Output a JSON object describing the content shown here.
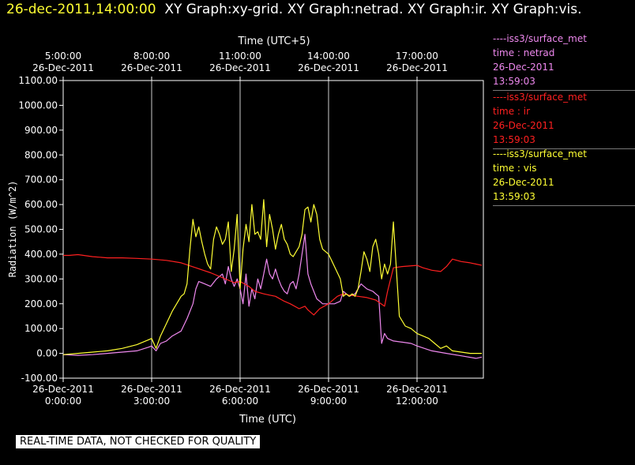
{
  "header": {
    "timestamp": "26-dec-2011,14:00:00",
    "graphs": "XY Graph:xy-grid.  XY Graph:netrad.  XY Graph:ir.  XY Graph:vis."
  },
  "notice": "REAL-TIME DATA, NOT CHECKED FOR QUALITY",
  "legend": [
    {
      "source": "----iss3/surface_met",
      "label": "time : netrad",
      "date": "26-Dec-2011",
      "time": "13:59:03",
      "color": "#ee88ee"
    },
    {
      "source": "----iss3/surface_met",
      "label": "time : ir",
      "date": "26-Dec-2011",
      "time": "13:59:03",
      "color": "#ff2020"
    },
    {
      "source": "----iss3/surface_met",
      "label": "time : vis",
      "date": "26-Dec-2011",
      "time": "13:59:03",
      "color": "#ffff33"
    }
  ],
  "chart_data": {
    "type": "line",
    "xlabel": "Time (UTC)",
    "xlabel_top": "Time (UTC+5)",
    "ylabel": "Radiation (W/m^2)",
    "xlim": [
      0,
      14.25
    ],
    "ylim": [
      -100,
      1100
    ],
    "yticks": [
      "-100.00",
      "0.00",
      "100.00",
      "200.00",
      "300.00",
      "400.00",
      "500.00",
      "600.00",
      "700.00",
      "800.00",
      "900.00",
      "1000.00",
      "1100.00"
    ],
    "xticks": [
      {
        "value": 0,
        "date": "26-Dec-2011",
        "time": "0:00:00"
      },
      {
        "value": 3,
        "date": "26-Dec-2011",
        "time": "3:00:00"
      },
      {
        "value": 6,
        "date": "26-Dec-2011",
        "time": "6:00:00"
      },
      {
        "value": 9,
        "date": "26-Dec-2011",
        "time": "9:00:00"
      },
      {
        "value": 12,
        "date": "26-Dec-2011",
        "time": "12:00:00"
      }
    ],
    "xticks_top": [
      {
        "value": 0,
        "time": "5:00:00",
        "date": "26-Dec-2011"
      },
      {
        "value": 3,
        "time": "8:00:00",
        "date": "26-Dec-2011"
      },
      {
        "value": 6,
        "time": "11:00:00",
        "date": "26-Dec-2011"
      },
      {
        "value": 9,
        "time": "14:00:00",
        "date": "26-Dec-2011"
      },
      {
        "value": 12,
        "time": "17:00:00",
        "date": "26-Dec-2011"
      }
    ],
    "grid": "vertical",
    "series": [
      {
        "name": "netrad",
        "color": "#ee88ee",
        "x": [
          0,
          0.5,
          1,
          1.5,
          2,
          2.5,
          2.9,
          3.0,
          3.15,
          3.3,
          3.5,
          3.7,
          4.0,
          4.2,
          4.4,
          4.5,
          4.6,
          4.8,
          5.0,
          5.2,
          5.4,
          5.5,
          5.6,
          5.7,
          5.8,
          5.9,
          6.0,
          6.1,
          6.2,
          6.3,
          6.4,
          6.5,
          6.6,
          6.7,
          6.8,
          6.9,
          7.0,
          7.1,
          7.2,
          7.3,
          7.4,
          7.5,
          7.6,
          7.7,
          7.8,
          7.9,
          8.0,
          8.1,
          8.2,
          8.3,
          8.4,
          8.5,
          8.6,
          8.7,
          8.8,
          9.0,
          9.2,
          9.4,
          9.5,
          9.7,
          9.9,
          10.1,
          10.3,
          10.5,
          10.6,
          10.7,
          10.8,
          10.9,
          11.0,
          11.2,
          11.5,
          11.8,
          12.0,
          12.5,
          13.0,
          13.5,
          14.0,
          14.2
        ],
        "y": [
          -5,
          -8,
          -5,
          0,
          5,
          10,
          25,
          30,
          10,
          40,
          50,
          70,
          90,
          140,
          200,
          260,
          290,
          280,
          270,
          300,
          320,
          280,
          350,
          300,
          270,
          300,
          260,
          200,
          320,
          190,
          260,
          220,
          300,
          260,
          320,
          380,
          320,
          300,
          340,
          300,
          270,
          250,
          240,
          280,
          290,
          260,
          320,
          400,
          480,
          320,
          280,
          250,
          220,
          210,
          200,
          200,
          200,
          210,
          250,
          230,
          240,
          280,
          260,
          250,
          240,
          230,
          40,
          80,
          60,
          50,
          45,
          40,
          30,
          10,
          0,
          -10,
          -20,
          -15
        ]
      },
      {
        "name": "ir",
        "color": "#ff2020",
        "x": [
          0,
          0.2,
          0.5,
          1,
          1.5,
          2,
          2.5,
          3,
          3.5,
          4,
          4.5,
          5,
          5.5,
          5.8,
          6,
          6.3,
          6.5,
          6.8,
          7,
          7.2,
          7.5,
          7.7,
          8,
          8.2,
          8.3,
          8.5,
          8.7,
          9,
          9.3,
          9.5,
          9.7,
          10,
          10.3,
          10.6,
          10.9,
          11.0,
          11.2,
          11.5,
          12,
          12.2,
          12.5,
          12.8,
          13,
          13.2,
          13.5,
          13.8,
          14,
          14.2
        ],
        "y": [
          395,
          395,
          398,
          390,
          385,
          385,
          383,
          380,
          375,
          365,
          345,
          325,
          300,
          285,
          290,
          270,
          250,
          240,
          235,
          230,
          210,
          200,
          180,
          190,
          175,
          155,
          180,
          200,
          230,
          240,
          235,
          230,
          225,
          215,
          190,
          250,
          345,
          350,
          355,
          345,
          335,
          330,
          350,
          380,
          370,
          365,
          360,
          355
        ]
      },
      {
        "name": "vis",
        "color": "#ffff33",
        "x": [
          0,
          0.5,
          1,
          1.5,
          2,
          2.5,
          2.9,
          3.0,
          3.15,
          3.3,
          3.5,
          3.7,
          4.0,
          4.1,
          4.2,
          4.3,
          4.4,
          4.5,
          4.6,
          4.7,
          4.8,
          4.9,
          5.0,
          5.1,
          5.2,
          5.3,
          5.4,
          5.5,
          5.6,
          5.7,
          5.8,
          5.9,
          6.0,
          6.1,
          6.2,
          6.3,
          6.4,
          6.5,
          6.6,
          6.7,
          6.8,
          6.9,
          7.0,
          7.1,
          7.2,
          7.3,
          7.4,
          7.5,
          7.6,
          7.7,
          7.8,
          7.9,
          8.0,
          8.1,
          8.2,
          8.3,
          8.4,
          8.5,
          8.6,
          8.7,
          8.8,
          9.0,
          9.2,
          9.4,
          9.5,
          9.6,
          9.7,
          9.8,
          9.9,
          10.0,
          10.1,
          10.2,
          10.3,
          10.4,
          10.5,
          10.6,
          10.7,
          10.8,
          10.9,
          11.0,
          11.1,
          11.2,
          11.4,
          11.6,
          11.8,
          12.0,
          12.2,
          12.4,
          12.6,
          12.8,
          13.0,
          13.2,
          13.5,
          13.8,
          14.0,
          14.2
        ],
        "y": [
          -5,
          0,
          5,
          10,
          20,
          35,
          55,
          60,
          20,
          70,
          120,
          170,
          230,
          240,
          280,
          420,
          540,
          470,
          510,
          450,
          400,
          360,
          340,
          460,
          510,
          480,
          440,
          460,
          530,
          330,
          420,
          560,
          260,
          420,
          520,
          450,
          600,
          480,
          490,
          460,
          620,
          430,
          560,
          500,
          420,
          480,
          520,
          460,
          440,
          400,
          390,
          410,
          430,
          480,
          580,
          590,
          530,
          600,
          560,
          460,
          420,
          400,
          350,
          300,
          230,
          240,
          230,
          240,
          230,
          260,
          330,
          410,
          380,
          330,
          430,
          460,
          400,
          300,
          360,
          320,
          360,
          530,
          150,
          110,
          100,
          80,
          70,
          60,
          40,
          20,
          30,
          10,
          5,
          0,
          0,
          0
        ]
      }
    ]
  }
}
